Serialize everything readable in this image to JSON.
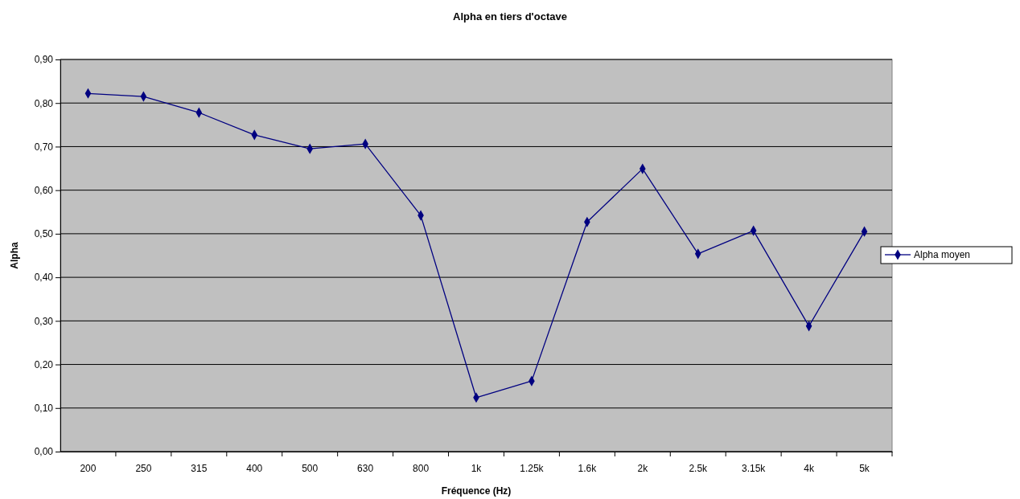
{
  "chart_data": {
    "type": "line",
    "title": "Alpha en tiers d'octave",
    "xlabel": "Fréquence (Hz)",
    "ylabel": "Alpha",
    "categories": [
      "200",
      "250",
      "315",
      "400",
      "500",
      "630",
      "800",
      "1k",
      "1.25k",
      "1.6k",
      "2k",
      "2.5k",
      "3.15k",
      "4k",
      "5k"
    ],
    "series": [
      {
        "name": "Alpha moyen",
        "color": "#000080",
        "values": [
          0.822,
          0.815,
          0.778,
          0.727,
          0.695,
          0.706,
          0.542,
          0.124,
          0.162,
          0.527,
          0.649,
          0.454,
          0.507,
          0.288,
          0.505
        ]
      }
    ],
    "ylim": [
      0,
      0.9
    ],
    "yticks": [
      {
        "value": 0,
        "label": "0,00"
      },
      {
        "value": 0.1,
        "label": "0,10"
      },
      {
        "value": 0.2,
        "label": "0,20"
      },
      {
        "value": 0.3,
        "label": "0,30"
      },
      {
        "value": 0.4,
        "label": "0,40"
      },
      {
        "value": 0.5,
        "label": "0,50"
      },
      {
        "value": 0.6,
        "label": "0,60"
      },
      {
        "value": 0.7,
        "label": "0,70"
      },
      {
        "value": 0.8,
        "label": "0,80"
      },
      {
        "value": 0.9,
        "label": "0,90"
      }
    ],
    "grid": "y",
    "legend": "right",
    "marker": "diamond",
    "line_style": "solid"
  }
}
